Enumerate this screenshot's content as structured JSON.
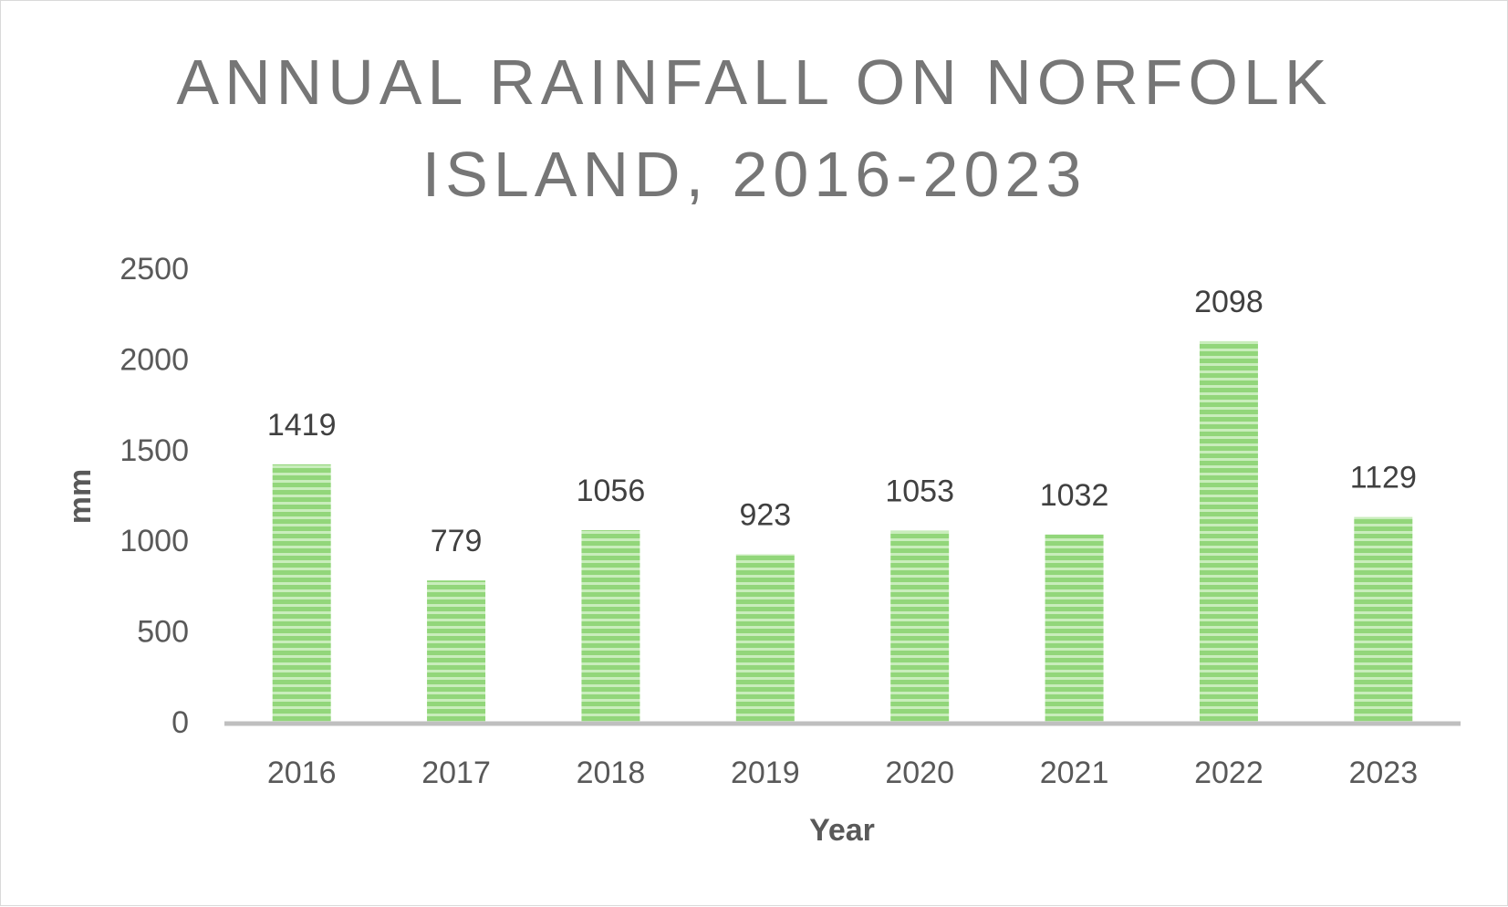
{
  "chart_data": {
    "type": "bar",
    "title_lines": [
      "ANNUAL RAINFALL ON NORFOLK",
      "ISLAND, 2016-2023"
    ],
    "xlabel": "Year",
    "ylabel": "mm",
    "categories": [
      "2016",
      "2017",
      "2018",
      "2019",
      "2020",
      "2021",
      "2022",
      "2023"
    ],
    "values": [
      1419,
      779,
      1056,
      923,
      1053,
      1032,
      2098,
      1129
    ],
    "ylim": [
      0,
      2500
    ],
    "yticks": [
      "0",
      "500",
      "1000",
      "1500",
      "2000",
      "2500"
    ],
    "grid": false,
    "legend": "none",
    "bar_color": "#92d67a",
    "bar_stripe_color": "#c9edbc",
    "axis_color": "#bfbfbf"
  }
}
